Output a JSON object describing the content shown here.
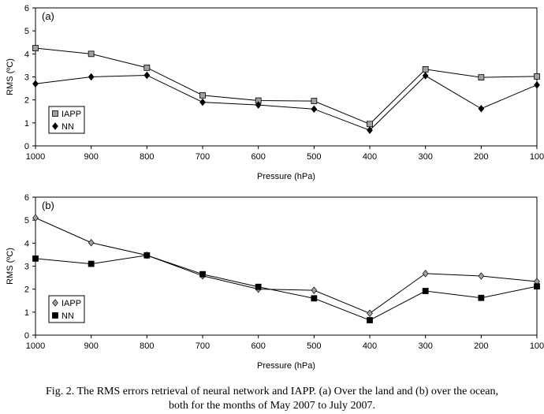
{
  "chart_data": [
    {
      "type": "line",
      "panel_label": "(a)",
      "xlabel": "Pressure (hPa)",
      "ylabel": "RMS (ºC)",
      "x": [
        1000,
        900,
        800,
        700,
        600,
        500,
        400,
        300,
        200,
        100
      ],
      "x_tick_labels": [
        "1000",
        "900",
        "800",
        "700",
        "600",
        "500",
        "400",
        "300",
        "200",
        "100"
      ],
      "ylim": [
        0,
        6
      ],
      "y_ticks": [
        "0",
        "1",
        "2",
        "3",
        "4",
        "5",
        "6"
      ],
      "legend_position": "bottom-left",
      "series": [
        {
          "name": "IAPP",
          "marker": "square",
          "fill": "#a0a0a0",
          "values": [
            4.25,
            4.0,
            3.4,
            2.2,
            1.97,
            1.95,
            0.95,
            3.33,
            2.98,
            3.02
          ]
        },
        {
          "name": "NN",
          "marker": "diamond",
          "fill": "#000000",
          "values": [
            2.7,
            3.0,
            3.07,
            1.9,
            1.78,
            1.6,
            0.68,
            3.05,
            1.62,
            2.65
          ]
        }
      ]
    },
    {
      "type": "line",
      "panel_label": "(b)",
      "xlabel": "Pressure (hPa)",
      "ylabel": "RMS (ºC)",
      "x": [
        1000,
        900,
        800,
        700,
        600,
        500,
        400,
        300,
        200,
        100
      ],
      "x_tick_labels": [
        "1000",
        "900",
        "800",
        "700",
        "600",
        "500",
        "400",
        "300",
        "200",
        "100"
      ],
      "ylim": [
        0,
        6
      ],
      "y_ticks": [
        "0",
        "1",
        "2",
        "3",
        "4",
        "5",
        "6"
      ],
      "legend_position": "bottom-left",
      "series": [
        {
          "name": "IAPP",
          "marker": "diamond",
          "fill": "#a0a0a0",
          "values": [
            5.1,
            4.02,
            3.47,
            2.58,
            2.0,
            1.95,
            0.95,
            2.68,
            2.57,
            2.33
          ]
        },
        {
          "name": "NN",
          "marker": "square",
          "fill": "#000000",
          "values": [
            3.33,
            3.1,
            3.47,
            2.65,
            2.1,
            1.6,
            0.65,
            1.92,
            1.62,
            2.12
          ]
        }
      ]
    }
  ],
  "caption": {
    "line1": "Fig. 2. The RMS errors retrieval of neural network and IAPP. (a) Over the land and (b) over the ocean,",
    "line2": "both for the months of May 2007 to July 2007."
  }
}
